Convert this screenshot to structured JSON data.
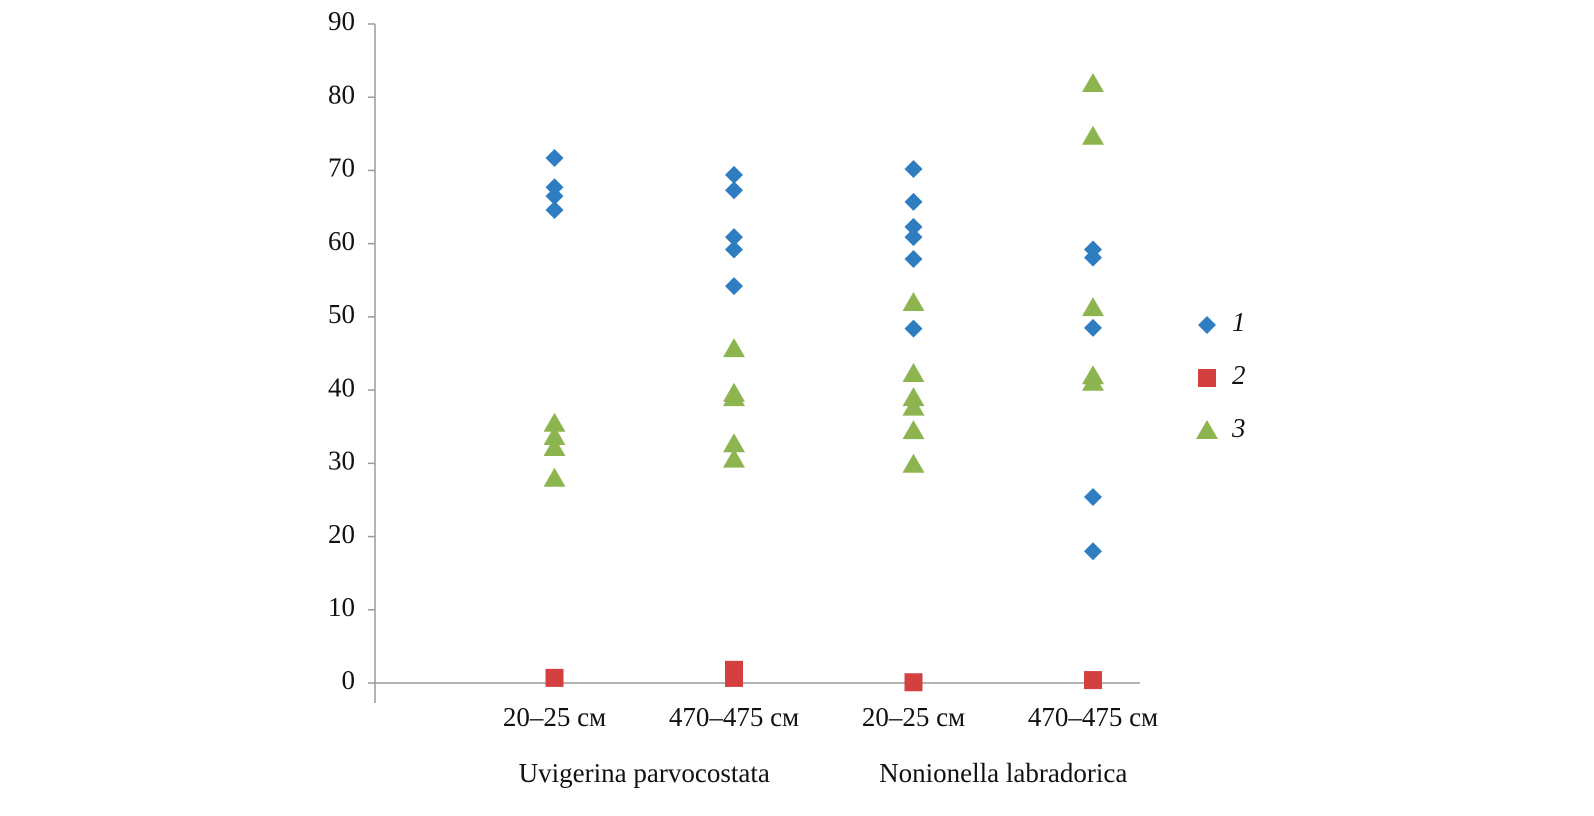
{
  "chart_data": {
    "type": "strip",
    "categories": [
      "20–25 см",
      "470–475 см",
      "20–25 см",
      "470–475 см"
    ],
    "groups": [
      "Uvigerina parvocostata",
      "Nonionella labradorica"
    ],
    "ylim": [
      0,
      90
    ],
    "yticks": [
      0,
      10,
      20,
      30,
      40,
      50,
      60,
      70,
      80,
      90
    ],
    "series": [
      {
        "name": "1",
        "color": "#2e7dc0",
        "marker": "diamond",
        "values": [
          [
            71.7,
            67.7,
            66.5,
            64.6
          ],
          [
            69.4,
            67.3,
            60.9,
            59.2,
            54.2
          ],
          [
            70.2,
            65.7,
            62.3,
            60.9,
            57.9,
            48.4
          ],
          [
            59.2,
            58.1,
            48.5,
            25.4,
            18.0
          ]
        ]
      },
      {
        "name": "2",
        "color": "#d43f3f",
        "marker": "square",
        "values": [
          [
            0.7
          ],
          [
            1.8,
            0.7
          ],
          [
            0.1
          ],
          [
            0.4
          ]
        ]
      },
      {
        "name": "3",
        "color": "#8cb54f",
        "marker": "triangle",
        "values": [
          [
            35.4,
            33.6,
            32.1,
            27.9
          ],
          [
            45.6,
            39.5,
            38.9,
            32.6,
            30.5
          ],
          [
            51.9,
            42.2,
            38.9,
            37.6,
            34.4,
            29.8
          ],
          [
            81.8,
            74.6,
            51.2,
            41.9,
            41.0
          ]
        ]
      }
    ]
  }
}
